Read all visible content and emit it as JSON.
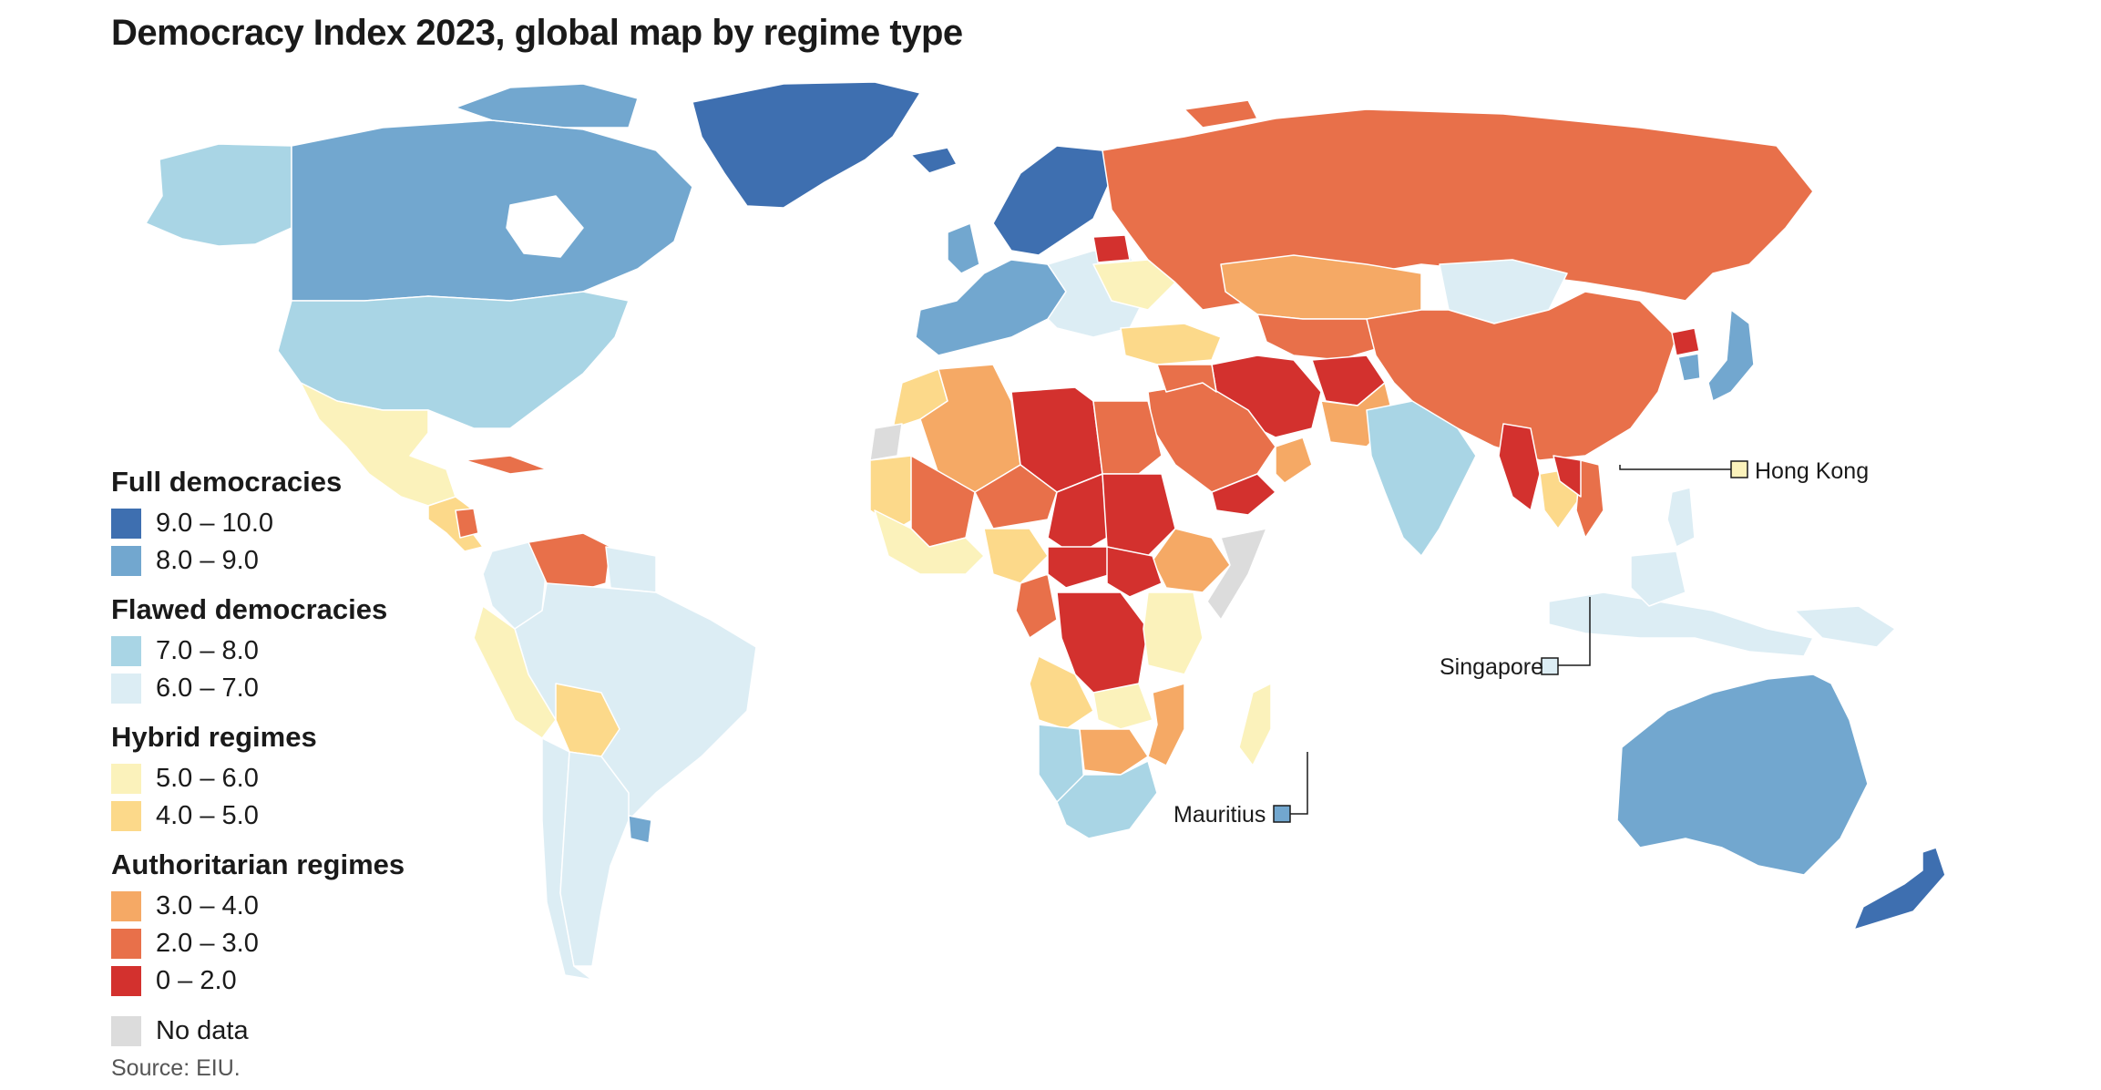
{
  "title": "Democracy Index 2023, global map by regime type",
  "source": "Source: EIU.",
  "legend": {
    "groups": [
      {
        "title": "Full democracies",
        "items": [
          {
            "label": "9.0 – 10.0",
            "color": "#3e6fb0"
          },
          {
            "label": "8.0 – 9.0",
            "color": "#72a7cf"
          }
        ]
      },
      {
        "title": "Flawed democracies",
        "items": [
          {
            "label": "7.0 – 8.0",
            "color": "#a9d5e5"
          },
          {
            "label": "6.0 – 7.0",
            "color": "#dcedf4"
          }
        ]
      },
      {
        "title": "Hybrid regimes",
        "items": [
          {
            "label": "5.0 – 6.0",
            "color": "#fbf2bb"
          },
          {
            "label": "4.0 – 5.0",
            "color": "#fcd98a"
          }
        ]
      },
      {
        "title": "Authoritarian regimes",
        "items": [
          {
            "label": "3.0 – 4.0",
            "color": "#f5a965"
          },
          {
            "label": "2.0 – 3.0",
            "color": "#e8704a"
          },
          {
            "label": "0 – 2.0",
            "color": "#d3312e"
          }
        ]
      }
    ],
    "nodata": {
      "label": "No data",
      "color": "#dcdcdc"
    }
  },
  "callouts": {
    "hong_kong": {
      "label": "Hong Kong",
      "color": "#fbf2bb"
    },
    "singapore": {
      "label": "Singapore",
      "color": "#dcedf4"
    },
    "mauritius": {
      "label": "Mauritius",
      "color": "#72a7cf"
    }
  }
}
